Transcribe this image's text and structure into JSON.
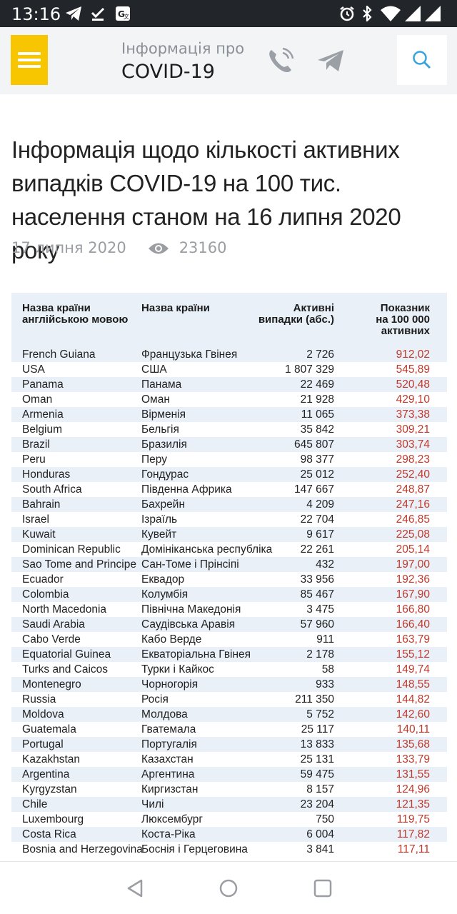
{
  "status": {
    "time": "13:16"
  },
  "header": {
    "brand_small": "Інформація про",
    "brand_big": "COVID-19"
  },
  "article": {
    "title": "Інформація щодо кількості активних випадків COVID-19 на 100 тис. населення станом на 16 липня 2020 року",
    "date": "17 липня 2020",
    "views": "23160"
  },
  "table": {
    "headers": {
      "name_en": "Назва країни англійською мовою",
      "name_uk": "Назва країни",
      "active": "Активні випадки (абс.)",
      "rate": "Показник на 100 000 активних"
    },
    "rows": [
      [
        "French Guiana",
        "Французька Гвінея",
        "2 726",
        "912,02"
      ],
      [
        "USA",
        "США",
        "1 807 329",
        "545,89"
      ],
      [
        "Panama",
        "Панама",
        "22 469",
        "520,48"
      ],
      [
        "Oman",
        "Оман",
        "21 928",
        "429,10"
      ],
      [
        "Armenia",
        "Вірменія",
        "11 065",
        "373,38"
      ],
      [
        "Belgium",
        "Бельгія",
        "35 842",
        "309,21"
      ],
      [
        "Brazil",
        "Бразилія",
        "645 807",
        "303,74"
      ],
      [
        "Peru",
        "Перу",
        "98 377",
        "298,23"
      ],
      [
        "Honduras",
        "Гондурас",
        "25 012",
        "252,40"
      ],
      [
        "South Africa",
        "Південна Африка",
        "147 667",
        "248,87"
      ],
      [
        "Bahrain",
        "Бахрейн",
        "4 209",
        "247,16"
      ],
      [
        "Israel",
        "Ізраїль",
        "22 704",
        "246,85"
      ],
      [
        "Kuwait",
        "Кувейт",
        "9 617",
        "225,08"
      ],
      [
        "Dominican Republic",
        "Домініканська республіка",
        "22 261",
        "205,14"
      ],
      [
        "Sao Tome and Principe",
        "Сан-Томе і Прінсіпі",
        "432",
        "197,00"
      ],
      [
        "Ecuador",
        "Еквадор",
        "33 956",
        "192,36"
      ],
      [
        "Colombia",
        "Колумбія",
        "85 467",
        "167,90"
      ],
      [
        "North Macedonia",
        "Північна Македонія",
        "3 475",
        "166,80"
      ],
      [
        "Saudi Arabia",
        "Саудівська Аравія",
        "57 960",
        "166,40"
      ],
      [
        "Cabo Verde",
        "Кабо Верде",
        "911",
        "163,79"
      ],
      [
        "Equatorial Guinea",
        "Екваторіальна Гвінея",
        "2 178",
        "155,12"
      ],
      [
        "Turks and Caicos",
        "Турки і Кайкос",
        "58",
        "149,74"
      ],
      [
        "Montenegro",
        "Чорногорія",
        "933",
        "148,55"
      ],
      [
        "Russia",
        "Росія",
        "211 350",
        "144,82"
      ],
      [
        "Moldova",
        "Молдова",
        "5 752",
        "142,60"
      ],
      [
        "Guatemala",
        "Гватемала",
        "25 117",
        "140,11"
      ],
      [
        "Portugal",
        "Португалія",
        "13 833",
        "135,68"
      ],
      [
        "Kazakhstan",
        "Казахстан",
        "25 131",
        "133,79"
      ],
      [
        "Argentina",
        "Аргентина",
        "59 475",
        "131,55"
      ],
      [
        "Kyrgyzstan",
        "Киргизстан",
        "8 157",
        "124,96"
      ],
      [
        "Chile",
        "Чилі",
        "23 204",
        "121,35"
      ],
      [
        "Luxembourg",
        "Люксембург",
        "750",
        "119,75"
      ],
      [
        "Costa Rica",
        "Коста-Ріка",
        "6 004",
        "117,82"
      ],
      [
        "Bosnia and Herzegovina",
        "Боснія і Герцеговина",
        "3 841",
        "117,11"
      ]
    ]
  },
  "icons": {
    "status_left": [
      "telegram-icon",
      "download-done-icon",
      "translate-icon"
    ],
    "status_right": [
      "alarm-icon",
      "bluetooth-icon",
      "wifi-icon",
      "signal-icon",
      "signal-icon"
    ],
    "header": [
      "menu-icon",
      "phone-icon",
      "telegram-icon",
      "search-icon"
    ],
    "meta": [
      "eye-icon"
    ],
    "nav": [
      "back-icon",
      "home-icon",
      "recents-icon"
    ]
  },
  "colors": {
    "menu_accent": "#f7c600",
    "rate_red": "#c0392b",
    "table_stripe": "#e9f0f8",
    "search_icon": "#3aa3d9"
  }
}
